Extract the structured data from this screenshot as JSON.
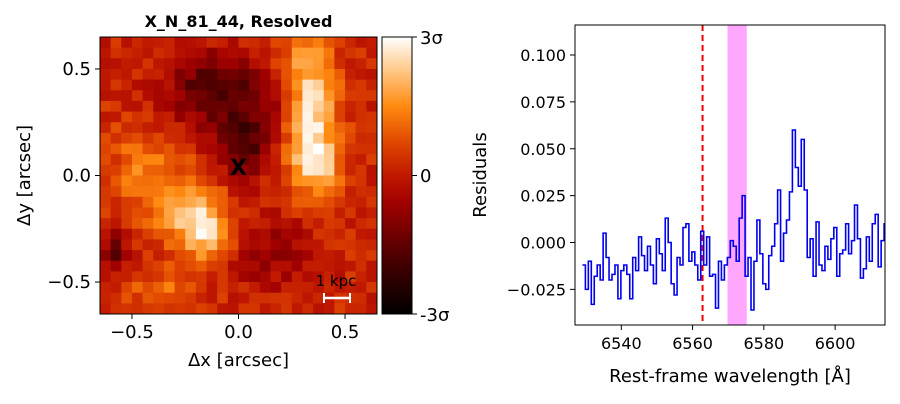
{
  "chart_data": [
    {
      "type": "heatmap",
      "title": "X_N_81_44, Resolved",
      "xlabel": "Δx [arcsec]",
      "ylabel": "Δy [arcsec]",
      "xlim": [
        -0.65,
        0.65
      ],
      "ylim": [
        -0.65,
        0.65
      ],
      "xticks": [
        -0.5,
        0.0,
        0.5
      ],
      "xtick_labels": [
        "−0.5",
        "0.0",
        "0.5"
      ],
      "yticks": [
        -0.5,
        0.0,
        0.5
      ],
      "ytick_labels": [
        "−0.5",
        "0.0",
        "0.5"
      ],
      "colormap": "gist_heat",
      "colorbar_ticks": [
        "3σ",
        "0",
        "-3σ"
      ],
      "marker": {
        "label": "X",
        "x": 0.0,
        "y": 0.04,
        "color": "#1a8a1a"
      },
      "scalebar_label": "1 kpc",
      "grid_size": [
        26,
        26
      ],
      "features": [
        {
          "x": 0.33,
          "y": 0.32,
          "sx": 0.09,
          "sy": 0.24,
          "amp": 1.3
        },
        {
          "x": 0.38,
          "y": 0.05,
          "sx": 0.08,
          "sy": 0.1,
          "amp": 0.8
        },
        {
          "x": -0.22,
          "y": -0.18,
          "sx": 0.1,
          "sy": 0.12,
          "amp": 1.15
        },
        {
          "x": -0.12,
          "y": -0.3,
          "sx": 0.07,
          "sy": 0.08,
          "amp": 0.8
        },
        {
          "x": -0.45,
          "y": 0.02,
          "sx": 0.12,
          "sy": 0.15,
          "amp": 0.55
        },
        {
          "x": -0.35,
          "y": -0.55,
          "sx": 0.12,
          "sy": 0.08,
          "amp": 0.5
        },
        {
          "x": -0.1,
          "y": 0.4,
          "sx": 0.16,
          "sy": 0.12,
          "amp": -1.1
        },
        {
          "x": 0.03,
          "y": 0.14,
          "sx": 0.09,
          "sy": 0.1,
          "amp": -1.1
        },
        {
          "x": 0.2,
          "y": 0.3,
          "sx": 0.07,
          "sy": 0.08,
          "amp": -0.5
        },
        {
          "x": 0.15,
          "y": -0.35,
          "sx": 0.15,
          "sy": 0.12,
          "amp": -0.5
        },
        {
          "x": -0.58,
          "y": -0.35,
          "sx": 0.04,
          "sy": 0.08,
          "amp": -0.9
        }
      ]
    },
    {
      "type": "line",
      "title": "",
      "xlabel": "Rest-frame wavelength [Å]",
      "ylabel": "Residuals",
      "xlim": [
        6527,
        6614
      ],
      "ylim": [
        -0.044,
        0.116
      ],
      "xticks": [
        6540,
        6560,
        6580,
        6600
      ],
      "yticks": [
        -0.025,
        0.0,
        0.025,
        0.05,
        0.075,
        0.1
      ],
      "ytick_labels": [
        "−0.025",
        "0.000",
        "0.025",
        "0.050",
        "0.075",
        "0.100"
      ],
      "series": [
        {
          "color": "#0000ee",
          "x_start": 6529.5,
          "x_step": 0.83,
          "values": [
            -0.012,
            -0.025,
            -0.01,
            -0.033,
            -0.018,
            -0.012,
            -0.02,
            0.005,
            -0.008,
            -0.02,
            -0.017,
            -0.012,
            -0.03,
            -0.015,
            -0.012,
            -0.017,
            -0.03,
            -0.008,
            -0.015,
            0.003,
            -0.007,
            -0.015,
            -0.002,
            -0.012,
            -0.022,
            0.002,
            -0.006,
            -0.015,
            0.013,
            0.0,
            -0.022,
            -0.028,
            -0.008,
            -0.012,
            0.008,
            0.01,
            -0.01,
            -0.005,
            -0.012,
            -0.02,
            0.006,
            -0.012,
            0.003,
            -0.018,
            -0.017,
            -0.035,
            -0.01,
            -0.02,
            -0.012,
            -0.008,
            0.001,
            -0.002,
            -0.01,
            0.013,
            0.025,
            -0.018,
            -0.008,
            -0.036,
            -0.01,
            0.012,
            -0.006,
            -0.022,
            -0.025,
            -0.007,
            -0.002,
            0.01,
            0.028,
            -0.01,
            0.005,
            0.012,
            0.027,
            0.06,
            0.04,
            0.03,
            0.055,
            0.028,
            -0.008,
            0.002,
            -0.018,
            0.011,
            -0.012,
            -0.015,
            -0.002,
            -0.009,
            0.002,
            0.008,
            -0.018,
            -0.006,
            -0.004,
            0.01,
            -0.006,
            0.001,
            0.02,
            0.002,
            -0.019,
            -0.014,
            0.003,
            -0.01,
            0.01,
            0.015,
            -0.013,
            0.001,
            0.01,
            -0.02,
            0.01,
            -0.008,
            0.015,
            -0.012,
            -0.018,
            0.002,
            0.01,
            0.002,
            -0.012,
            0.022,
            0.0,
            0.003,
            -0.008,
            -0.012,
            0.003,
            0.01,
            -0.006,
            -0.017,
            -0.022,
            0.0,
            -0.011,
            0.002,
            -0.023,
            0.002,
            0.01,
            -0.015,
            -0.02,
            -0.008,
            0.012,
            0.005,
            0.02,
            0.014,
            0.0,
            -0.012,
            0.017,
            0.027,
            -0.003,
            -0.019,
            0.012,
            0.01
          ]
        }
      ],
      "vline": {
        "x": 6562.8,
        "color": "#ee0000",
        "style": "dashed"
      },
      "vspan": {
        "x0": 6569.8,
        "x1": 6575.2,
        "color": "#ff00ff",
        "alpha": 0.35
      }
    }
  ]
}
